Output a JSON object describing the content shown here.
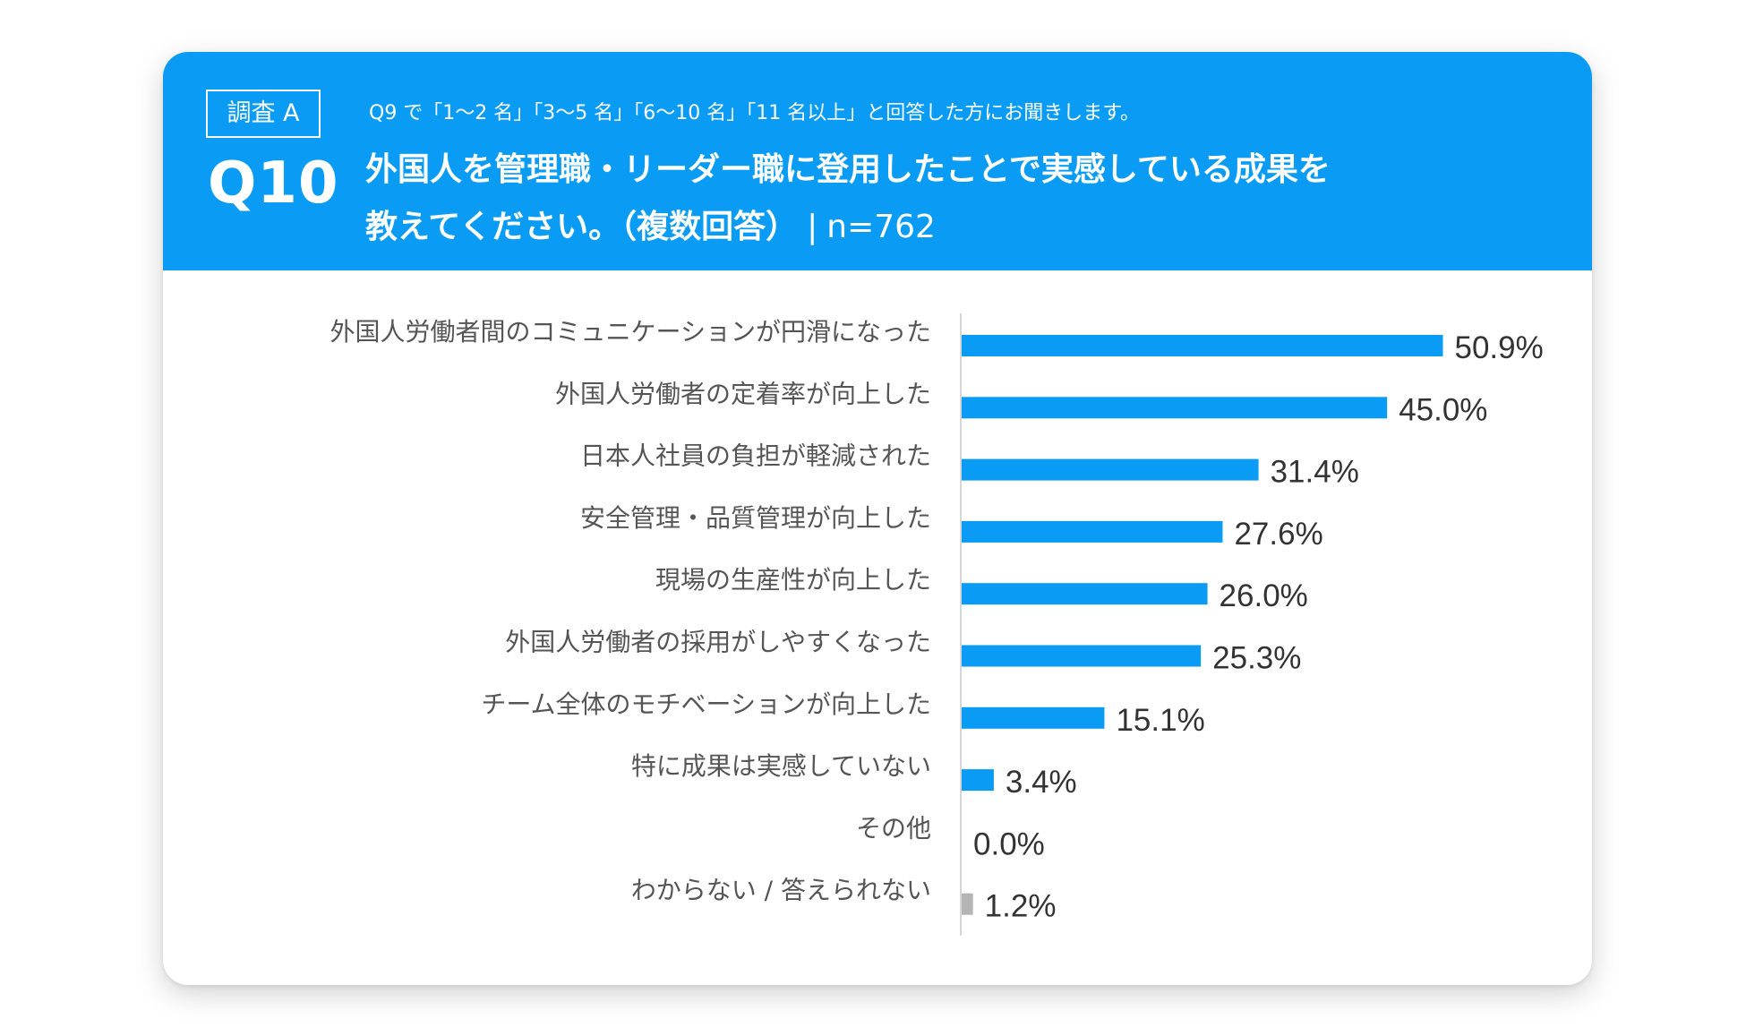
{
  "header": {
    "badge": "調査 A",
    "question_number": "Q10",
    "precondition": "Q9 で「1～2 名」「3～5 名」「6～10 名」「11 名以上」と回答した方にお聞きします。",
    "question_line1": "外国人を管理職・リーダー職に登用したことで実感している成果を",
    "question_line2": "教えてください。（複数回答）",
    "separator": "|",
    "sample_size": "n=762",
    "color": "#0A9CF5"
  },
  "chart_data": {
    "type": "bar",
    "orientation": "horizontal",
    "title": "",
    "xlabel": "",
    "ylabel": "",
    "unit": "%",
    "xlim": [
      0,
      60
    ],
    "categories": [
      "外国人労働者間のコミュニケーションが円滑になった",
      "外国人労働者の定着率が向上した",
      "日本人社員の負担が軽減された",
      "安全管理・品質管理が向上した",
      "現場の生産性が向上した",
      "外国人労働者の採用がしやすくなった",
      "チーム全体のモチベーションが向上した",
      "特に成果は実感していない",
      "その他",
      "わからない / 答えられない"
    ],
    "values": [
      50.9,
      45.0,
      31.4,
      27.6,
      26.0,
      25.3,
      15.1,
      3.4,
      0.0,
      1.2
    ],
    "value_labels": [
      "50.9%",
      "45.0%",
      "31.4%",
      "27.6%",
      "26.0%",
      "25.3%",
      "15.1%",
      "3.4%",
      "0.0%",
      "1.2%"
    ],
    "bar_colors": [
      "#0A9CF5",
      "#0A9CF5",
      "#0A9CF5",
      "#0A9CF5",
      "#0A9CF5",
      "#0A9CF5",
      "#0A9CF5",
      "#0A9CF5",
      "#0A9CF5",
      "#B4B4B4"
    ],
    "grid": false,
    "legend": "none"
  }
}
